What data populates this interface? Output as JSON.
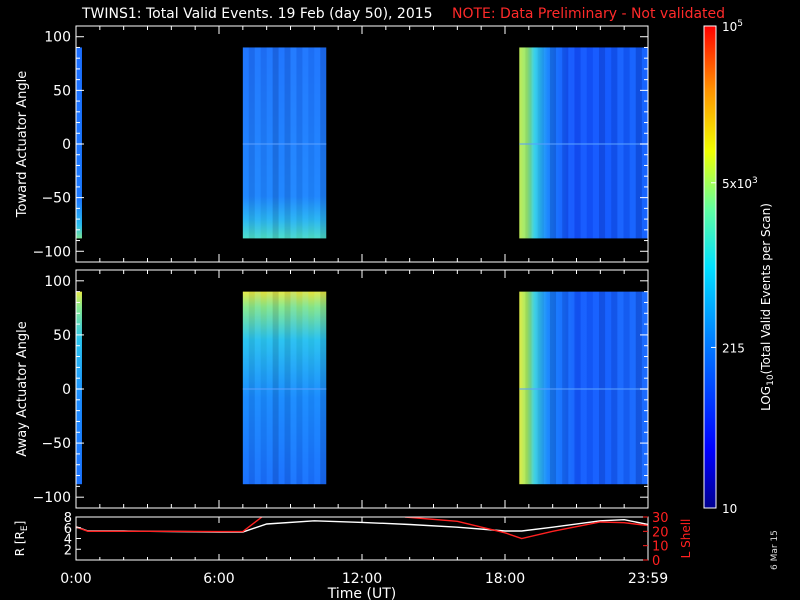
{
  "header": {
    "title": "TWINS1: Total Valid Events. 19 Feb (day  50), 2015",
    "note": "NOTE: Data Preliminary - Not validated"
  },
  "footer": {
    "date_stamp": "6 Mar 15"
  },
  "colors": {
    "background": "#000000",
    "axes": "#ffffff",
    "note": "#ff2a2a",
    "r_line": "#ffffff",
    "lshell_line": "#ff2020"
  },
  "chart_data": [
    {
      "type": "heatmap",
      "panel": "toward",
      "ylabel": "Toward Actuator Angle",
      "ylim": [
        -110,
        110
      ],
      "yticks": [
        100,
        50,
        0,
        -50,
        -100
      ],
      "xlim": [
        0,
        24
      ],
      "data_blocks": [
        {
          "t_start": 0.0,
          "t_end": 0.25,
          "angle_min": -88,
          "angle_max": 90,
          "level": "mid-low, brighter near -80"
        },
        {
          "t_start": 7.0,
          "t_end": 10.5,
          "angle_min": -88,
          "angle_max": 90,
          "level": "mid-low, bright near -80"
        },
        {
          "t_start": 18.6,
          "t_end": 24.0,
          "angle_min": -88,
          "angle_max": 90,
          "level": "high at onset, decreasing to low"
        }
      ]
    },
    {
      "type": "heatmap",
      "panel": "away",
      "ylabel": "Away Actuator Angle",
      "ylim": [
        -110,
        110
      ],
      "yticks": [
        100,
        50,
        0,
        -50,
        -100
      ],
      "xlim": [
        0,
        24
      ],
      "data_blocks": [
        {
          "t_start": 0.0,
          "t_end": 0.25,
          "angle_min": -88,
          "angle_max": 90,
          "level": "mid-low, bright near +85"
        },
        {
          "t_start": 7.0,
          "t_end": 10.5,
          "angle_min": -88,
          "angle_max": 90,
          "level": "mid, bright near +85"
        },
        {
          "t_start": 18.6,
          "t_end": 24.0,
          "angle_min": -88,
          "angle_max": 90,
          "level": "high at onset, decreasing to low"
        }
      ]
    },
    {
      "type": "line",
      "panel": "orbit",
      "ylabel_left": "R [R",
      "ylabel_left_sub": "E",
      "ylabel_right": "L Shell",
      "ylim_left": [
        0,
        8
      ],
      "yticks_left": [
        8,
        6,
        4,
        2
      ],
      "ylim_right": [
        0,
        30
      ],
      "yticks_right": [
        30,
        20,
        10,
        0
      ],
      "series": [
        {
          "axis": "left",
          "x": [
            0,
            0.5,
            2,
            4,
            6,
            7.0,
            8,
            10,
            12,
            14,
            16,
            18,
            18.7,
            20,
            22,
            23,
            24
          ],
          "y": [
            6.2,
            5.4,
            5.4,
            5.3,
            5.2,
            5.2,
            6.7,
            7.3,
            7.0,
            6.6,
            6.1,
            5.4,
            5.4,
            6.1,
            7.3,
            7.5,
            6.6
          ]
        },
        {
          "axis": "right",
          "x": [
            0,
            0.5,
            2,
            4,
            6,
            7.0,
            7.8
          ],
          "y": [
            23,
            20,
            20,
            20,
            19.8,
            19.8,
            30
          ]
        },
        {
          "axis": "right",
          "x": [
            13.8,
            16,
            18,
            18.7,
            20,
            22,
            23,
            24
          ],
          "y": [
            30,
            27,
            19,
            15,
            20,
            26.5,
            26,
            24
          ]
        }
      ]
    }
  ],
  "time_axis": {
    "xlabel": "Time (UT)",
    "tick_labels": [
      "0:00",
      "6:00",
      "12:00",
      "18:00",
      "23:59"
    ],
    "tick_hours": [
      0,
      6,
      12,
      18,
      24
    ]
  },
  "colorbar": {
    "label": "LOG",
    "label_sub": "10",
    "label_rest": "(Total Valid  Events per Scan)",
    "labels": [
      {
        "value": 100000,
        "base": "10",
        "exp": "5"
      },
      {
        "value": 5000,
        "base": "5x10",
        "exp": "3"
      },
      {
        "value": 215,
        "base": "215",
        "exp": ""
      },
      {
        "value": 10,
        "base": "10",
        "exp": ""
      }
    ],
    "range": [
      10,
      100000
    ]
  }
}
